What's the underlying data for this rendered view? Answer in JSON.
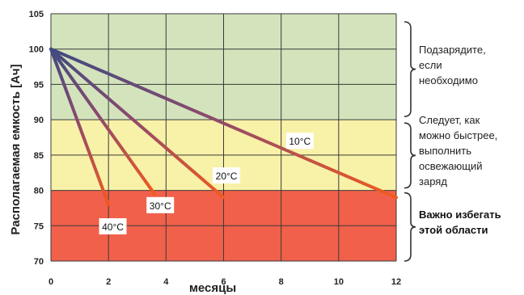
{
  "chart_data": {
    "type": "line",
    "ylabel": "Располагаемая емкость [Ач]",
    "xlabel": "месяцы",
    "xlim": [
      0,
      12
    ],
    "ylim": [
      70,
      105
    ],
    "xticks": [
      "0",
      "2",
      "4",
      "6",
      "8",
      "10",
      "12"
    ],
    "yticks": [
      "70",
      "75",
      "80",
      "85",
      "90",
      "95",
      "100",
      "105"
    ],
    "grid": true,
    "zones": [
      {
        "from": 90,
        "to": 105,
        "color": "#d3e4bd",
        "note": "Подзарядите, если необходимо"
      },
      {
        "from": 80,
        "to": 90,
        "color": "#f8f1a8",
        "note": "Следует, как можно быстрее, выполнить освежающий заряд"
      },
      {
        "from": 70,
        "to": 80,
        "color": "#f0604a",
        "note": "Важно избегать этой области"
      }
    ],
    "series": [
      {
        "name": "10°C",
        "x": [
          0,
          12
        ],
        "y": [
          100,
          79
        ]
      },
      {
        "name": "20°C",
        "x": [
          0,
          6
        ],
        "y": [
          100,
          79
        ]
      },
      {
        "name": "30°C",
        "x": [
          0,
          3.6
        ],
        "y": [
          100,
          79.5
        ]
      },
      {
        "name": "40°C",
        "x": [
          0,
          2
        ],
        "y": [
          100,
          78
        ]
      }
    ],
    "colors": {
      "line_start": "#3f4a82",
      "line_end": "#f25a1e",
      "grid": "#3a3a3a"
    }
  },
  "annotations": {
    "zone1": [
      "Подзарядите,",
      "если",
      "необходимо"
    ],
    "zone2": [
      "Следует, как",
      "можно быстрее,",
      "выполнить",
      "освежающий",
      "заряд"
    ],
    "zone3": [
      "Важно избегать",
      "этой области"
    ]
  }
}
